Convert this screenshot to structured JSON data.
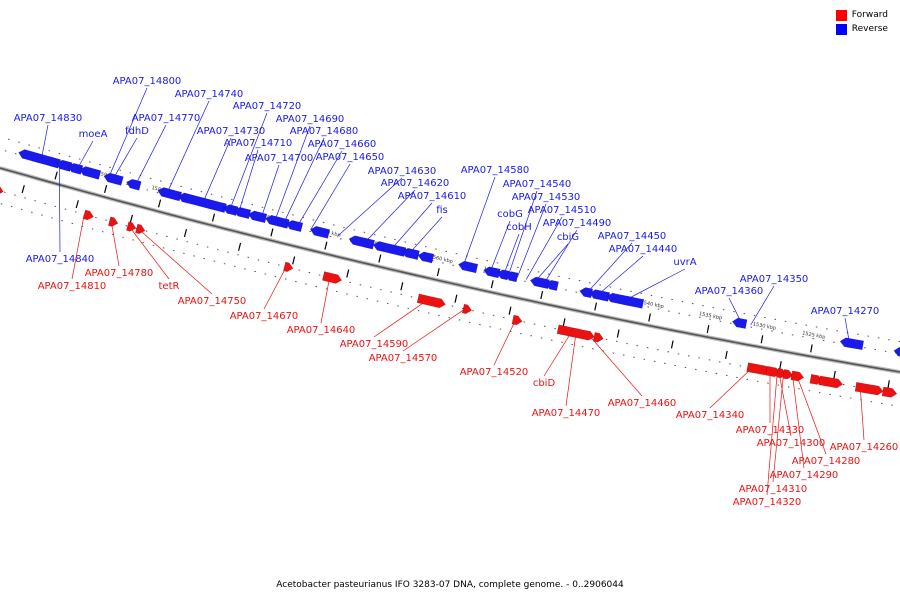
{
  "legend": {
    "forward": {
      "label": "Forward",
      "color": "#ff0000"
    },
    "reverse": {
      "label": "Reverse",
      "color": "#0000ff"
    }
  },
  "caption": "Acetobacter pasteurianus IFO 3283-07 DNA, complete genome. - 0..2906044",
  "scale_labels": [
    "1595 kbp",
    "1590 kbp",
    "1585 kbp",
    "1580 kbp",
    "1575 kbp",
    "1570 kbp",
    "1565 kbp",
    "1560 kbp",
    "1555 kbp",
    "1550 kbp",
    "1545 kbp",
    "1540 kbp",
    "1535 kbp",
    "1530 kbp",
    "1525 kbp"
  ],
  "reverse_genes": [
    "APA07_14840",
    "APA07_14830",
    "moeA",
    "APA07_14800",
    "fdhD",
    "APA07_14770",
    "APA07_14740",
    "APA07_14730",
    "APA07_14720",
    "APA07_14710",
    "APA07_14700",
    "APA07_14690",
    "APA07_14680",
    "APA07_14660",
    "APA07_14650",
    "APA07_14630",
    "APA07_14620",
    "APA07_14610",
    "fis",
    "APA07_14580",
    "cobG",
    "cobH",
    "APA07_14540",
    "APA07_14530",
    "APA07_14510",
    "cbiG",
    "APA07_14490",
    "APA07_14450",
    "APA07_14440",
    "uvrA",
    "APA07_14360",
    "APA07_14350",
    "APA07_14270"
  ],
  "forward_genes": [
    "APA07_14810",
    "APA07_14780",
    "tetR",
    "APA07_14750",
    "APA07_14670",
    "APA07_14640",
    "APA07_14590",
    "APA07_14570",
    "APA07_14520",
    "cbiD",
    "APA07_14470",
    "APA07_14460",
    "APA07_14340",
    "APA07_14330",
    "APA07_14300",
    "APA07_14280",
    "APA07_14290",
    "APA07_14310",
    "APA07_14320",
    "APA07_14260"
  ]
}
